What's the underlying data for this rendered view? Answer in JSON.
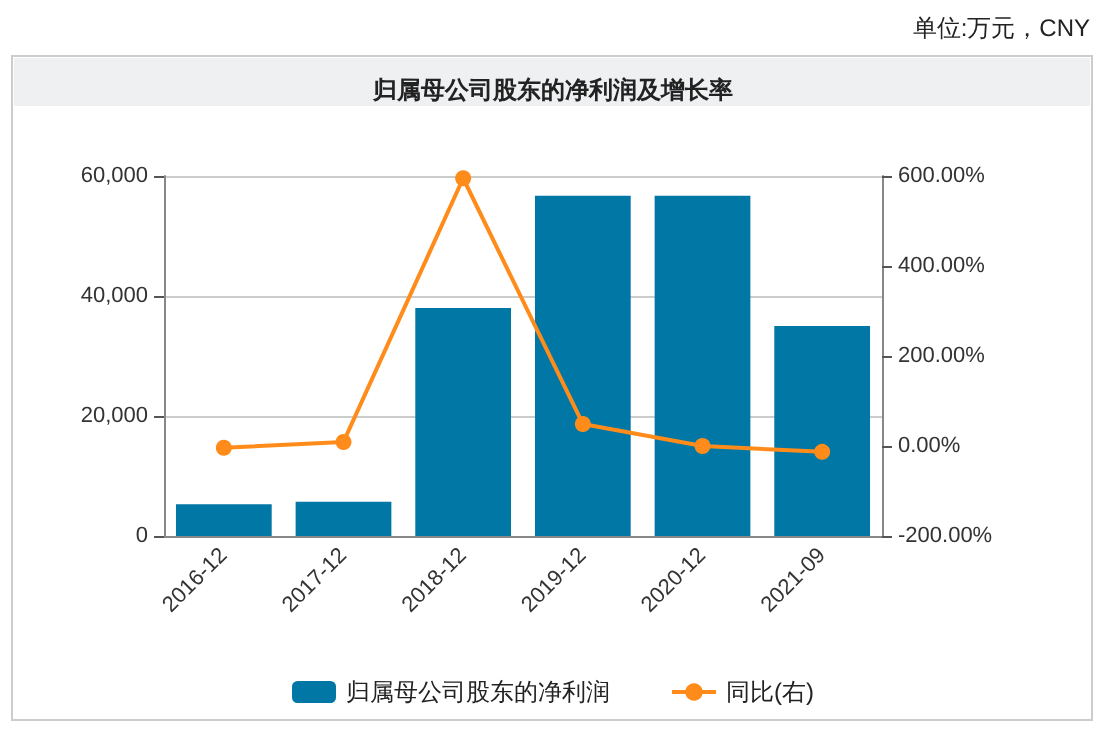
{
  "chart_data": {
    "type": "bar",
    "title": "归属母公司股东的净利润及增长率",
    "annotations": [
      "单位:万元，CNY"
    ],
    "categories": [
      "2016-12",
      "2017-12",
      "2018-12",
      "2019-12",
      "2020-12",
      "2021-09"
    ],
    "series": [
      {
        "name": "归属母公司股东的净利润",
        "color": "#0177a5",
        "values": [
          5300,
          5700,
          38000,
          56700,
          56700,
          35000
        ]
      },
      {
        "name": "同比(右)",
        "type": "line",
        "axis": "y2",
        "color": "#ff8c1a",
        "marker": "circle",
        "values": [
          -4,
          9,
          595,
          49,
          0,
          -13
        ]
      }
    ],
    "ylim": [
      0,
      60000
    ],
    "yticks": [
      0,
      {
        "value": 20000,
        "label": "20,000"
      },
      {
        "value": 40000,
        "label": "40,000"
      },
      {
        "value": 60000,
        "label": "60,000"
      }
    ],
    "y2lim": [
      -200,
      600
    ],
    "y2ticks": [
      {
        "value": -200,
        "label": "-200.00%"
      },
      {
        "value": 0,
        "label": "0.00%"
      },
      {
        "value": 200,
        "label": "200.00%"
      },
      {
        "value": 400,
        "label": "400.00%"
      },
      {
        "value": 600,
        "label": "600.00%"
      }
    ],
    "grid": "y",
    "legend": "bottom"
  }
}
